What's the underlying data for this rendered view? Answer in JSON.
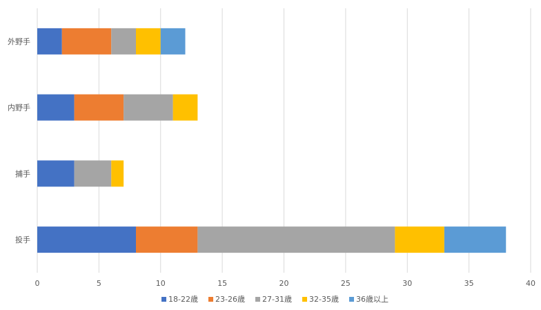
{
  "chart_data": {
    "type": "bar",
    "orientation": "horizontal",
    "stacked": true,
    "categories": [
      "投手",
      "捕手",
      "内野手",
      "外野手"
    ],
    "series": [
      {
        "name": "18-22歳",
        "color": "#4472C4",
        "values": [
          8,
          3,
          3,
          2
        ]
      },
      {
        "name": "23-26歳",
        "color": "#ED7D31",
        "values": [
          5,
          0,
          4,
          4
        ]
      },
      {
        "name": "27-31歳",
        "color": "#A5A5A5",
        "values": [
          16,
          3,
          4,
          2
        ]
      },
      {
        "name": "32-35歳",
        "color": "#FFC000",
        "values": [
          4,
          1,
          2,
          2
        ]
      },
      {
        "name": "36歳以上",
        "color": "#5B9BD5",
        "values": [
          5,
          0,
          0,
          2
        ]
      }
    ],
    "xlim": [
      0,
      40
    ],
    "x_ticks": [
      0,
      5,
      10,
      15,
      20,
      25,
      30,
      35,
      40
    ],
    "grid": true,
    "legend_position": "bottom",
    "title": "",
    "xlabel": "",
    "ylabel": ""
  }
}
